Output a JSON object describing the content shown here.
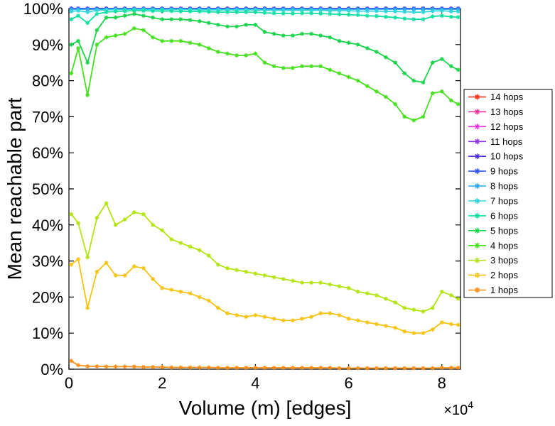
{
  "figure": {
    "background": "#ffffff",
    "border": "#000000"
  },
  "chart_data": {
    "type": "line",
    "title": "",
    "xlabel": "Volume (m) [edges]",
    "ylabel": "Mean reachable part",
    "x_multiplier": {
      "prefix": "×10",
      "exponent": "4"
    },
    "x_unit_note": "x values in units of 1e4 edges",
    "xlim": [
      0,
      8.4
    ],
    "ylim": [
      0,
      100
    ],
    "x_ticks": [
      0,
      2,
      4,
      6,
      8
    ],
    "x_tick_labels": [
      "0",
      "2",
      "4",
      "6",
      "8"
    ],
    "y_ticks": [
      0,
      10,
      20,
      30,
      40,
      50,
      60,
      70,
      80,
      90,
      100
    ],
    "y_tick_labels": [
      "0%",
      "10%",
      "20%",
      "30%",
      "40%",
      "50%",
      "60%",
      "70%",
      "80%",
      "90%",
      "100%"
    ],
    "grid": false,
    "legend_position": "right-outside",
    "marker": "asterisk",
    "x": [
      0.05,
      0.2,
      0.4,
      0.6,
      0.8,
      1.0,
      1.2,
      1.4,
      1.6,
      1.8,
      2.0,
      2.2,
      2.4,
      2.6,
      2.8,
      3.0,
      3.2,
      3.4,
      3.6,
      3.8,
      4.0,
      4.2,
      4.4,
      4.6,
      4.8,
      5.0,
      5.2,
      5.4,
      5.6,
      5.8,
      6.0,
      6.2,
      6.4,
      6.6,
      6.8,
      7.0,
      7.2,
      7.4,
      7.6,
      7.8,
      8.0,
      8.2,
      8.35
    ],
    "series": [
      {
        "name": "14 hops",
        "color": "#f62d14",
        "value": 100
      },
      {
        "name": "13 hops",
        "color": "#f5309b",
        "value": 100
      },
      {
        "name": "12 hops",
        "color": "#e234e2",
        "value": 100
      },
      {
        "name": "11 hops",
        "color": "#8d33ea",
        "value": 100
      },
      {
        "name": "10 hops",
        "color": "#4b2fe8",
        "value": 100
      },
      {
        "name": "9 hops",
        "color": "#2f55f0",
        "value": 99.92
      },
      {
        "name": "8 hops",
        "color": "#30a5f0",
        "value": 99.8
      },
      {
        "name": "7 hops",
        "color": "#2fd5db",
        "values": [
          99.2,
          99.4,
          99,
          99.5,
          99.6,
          99.7,
          99.7,
          99.8,
          99.8,
          99.7,
          99.7,
          99.7,
          99.7,
          99.7,
          99.6,
          99.6,
          99.6,
          99.6,
          99.6,
          99.6,
          99.6,
          99.5,
          99.5,
          99.5,
          99.5,
          99.5,
          99.5,
          99.5,
          99.4,
          99.4,
          99.4,
          99.3,
          99.3,
          99.3,
          99.2,
          99.2,
          99.1,
          99,
          99,
          99.3,
          99.4,
          99.2,
          99.2
        ]
      },
      {
        "name": "6 hops",
        "color": "#11dfa2",
        "values": [
          97,
          98,
          96,
          98.5,
          99,
          99.2,
          99.3,
          99.4,
          99.4,
          99.3,
          99.3,
          99.3,
          99.2,
          99.2,
          99.2,
          99.1,
          99,
          99,
          99,
          99,
          99,
          98.8,
          98.7,
          98.6,
          98.6,
          98.7,
          98.7,
          98.6,
          98.5,
          98.4,
          98.3,
          98.2,
          98,
          97.9,
          97.7,
          97.5,
          97.2,
          97,
          97,
          97.8,
          98,
          97.7,
          97.6
        ]
      },
      {
        "name": "5 hops",
        "color": "#19d34b",
        "values": [
          90,
          91,
          85,
          94,
          97.5,
          97.5,
          98,
          98.5,
          98,
          97.5,
          97,
          97,
          97,
          96.8,
          96.5,
          96,
          95.5,
          95,
          95,
          95.5,
          95.5,
          93.5,
          93,
          92.5,
          92.5,
          93,
          93,
          92.5,
          92,
          91,
          90.5,
          90,
          89,
          88,
          86.5,
          85,
          82,
          80,
          79.5,
          85,
          86,
          84,
          83
        ]
      },
      {
        "name": "4 hops",
        "color": "#46e01f",
        "values": [
          82,
          89,
          76,
          90,
          92,
          92.5,
          93,
          94.5,
          94,
          92,
          91,
          91,
          91,
          90.5,
          90,
          89,
          88,
          87.5,
          87,
          87,
          87.5,
          85,
          84,
          83.5,
          83.5,
          84,
          84,
          84,
          83,
          82,
          81,
          80,
          78.5,
          77,
          75.5,
          73.5,
          70,
          69,
          70,
          76.5,
          77,
          74.5,
          73.5
        ]
      },
      {
        "name": "3 hops",
        "color": "#b4e414",
        "values": [
          43,
          40.5,
          31,
          42,
          46,
          40,
          41.5,
          43.5,
          43,
          40,
          38.5,
          36,
          35,
          34,
          33,
          31.5,
          29,
          28,
          27.5,
          27,
          26.5,
          26,
          25.5,
          25,
          24.5,
          24,
          24,
          24,
          23.5,
          23,
          22.5,
          21.5,
          21,
          20.5,
          19.5,
          18.5,
          17,
          16.5,
          16,
          17,
          21.5,
          20.5,
          19.5
        ]
      },
      {
        "name": "2 hops",
        "color": "#f5c313",
        "values": [
          29,
          30.5,
          17,
          27,
          29.5,
          26,
          26,
          28.5,
          28,
          25,
          22.5,
          22,
          21.5,
          21,
          20,
          19,
          17,
          15.5,
          15,
          14.5,
          15,
          14.5,
          14,
          13.5,
          13.5,
          14,
          14.5,
          15.5,
          15.5,
          15,
          14,
          13.5,
          13,
          12.5,
          12,
          11.5,
          10.5,
          10,
          10,
          11,
          13,
          12.5,
          12.3
        ]
      },
      {
        "name": "1 hops",
        "color": "#fa8e16",
        "values": [
          2.3,
          1.1,
          0.8,
          0.8,
          0.7,
          0.7,
          0.7,
          0.7,
          0.6,
          0.6,
          0.6,
          0.5,
          0.5,
          0.5,
          0.5,
          0.5,
          0.4,
          0.4,
          0.4,
          0.4,
          0.4,
          0.4,
          0.4,
          0.4,
          0.4,
          0.4,
          0.4,
          0.4,
          0.4,
          0.3,
          0.3,
          0.3,
          0.3,
          0.3,
          0.3,
          0.3,
          0.3,
          0.3,
          0.3,
          0.3,
          0.4,
          0.4,
          0.4
        ]
      }
    ]
  }
}
